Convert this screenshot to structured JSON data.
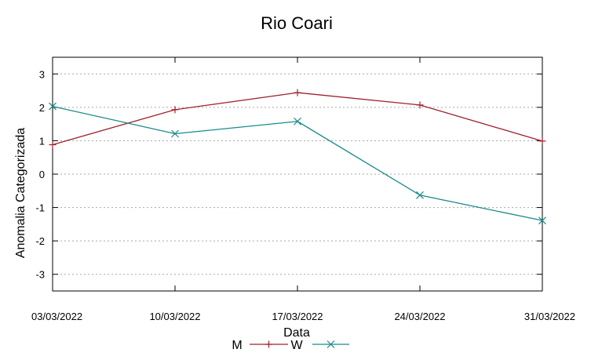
{
  "chart_data": {
    "type": "line",
    "title": "Rio Coari",
    "xlabel": "Data",
    "ylabel": "Anomalia Categorizada",
    "categories": [
      "03/03/2022",
      "10/03/2022",
      "17/03/2022",
      "24/03/2022",
      "31/03/2022"
    ],
    "yticks": [
      3,
      2,
      1,
      0,
      -1,
      -2,
      -3
    ],
    "ylim": [
      -3.5,
      3.5
    ],
    "grid": true,
    "legend": "bottom",
    "series": [
      {
        "name": "M",
        "values": [
          0.88,
          1.93,
          2.44,
          2.07,
          0.99
        ],
        "color": "#a0202a",
        "marker": "plus"
      },
      {
        "name": "W",
        "values": [
          2.03,
          1.21,
          1.58,
          -0.63,
          -1.39
        ],
        "color": "#1a8a8a",
        "marker": "x"
      }
    ]
  }
}
